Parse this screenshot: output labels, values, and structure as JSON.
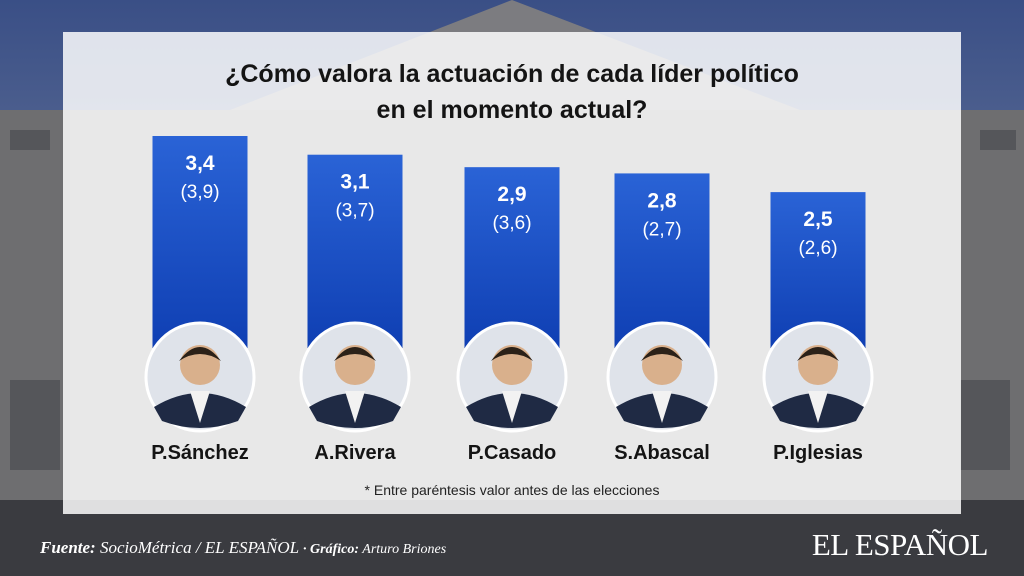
{
  "chart_data": {
    "type": "bar",
    "title_line1": "¿Cómo valora la actuación de cada líder político",
    "title_line2": "en el momento actual?",
    "categories": [
      "P.Sánchez",
      "A.Rivera",
      "P.Casado",
      "S.Abascal",
      "P.Iglesias"
    ],
    "values": [
      3.4,
      3.1,
      2.9,
      2.8,
      2.5
    ],
    "value_labels": [
      "3,4",
      "3,1",
      "2,9",
      "2,8",
      "2,5"
    ],
    "previous_labels": [
      "(3,9)",
      "(3,7)",
      "(3,6)",
      "(2,7)",
      "(2,6)"
    ],
    "ylim": [
      0,
      3.4
    ],
    "note": "* Entre paréntesis valor antes de las elecciones",
    "colors": {
      "bar_top": "#2a63d6",
      "bar_bottom": "#0f3fb3",
      "text": "#ffffff"
    }
  },
  "footer": {
    "source_label": "Fuente:",
    "source_text": "SocioMétrica / EL ESPAÑOL",
    "graphic_label": "· Gráfico:",
    "graphic_author": "Arturo Briones",
    "logo": "EL ESPAÑOL"
  },
  "avatar_icons": [
    "person-portrait-icon",
    "person-portrait-icon",
    "person-portrait-icon",
    "person-portrait-icon",
    "person-portrait-icon"
  ]
}
